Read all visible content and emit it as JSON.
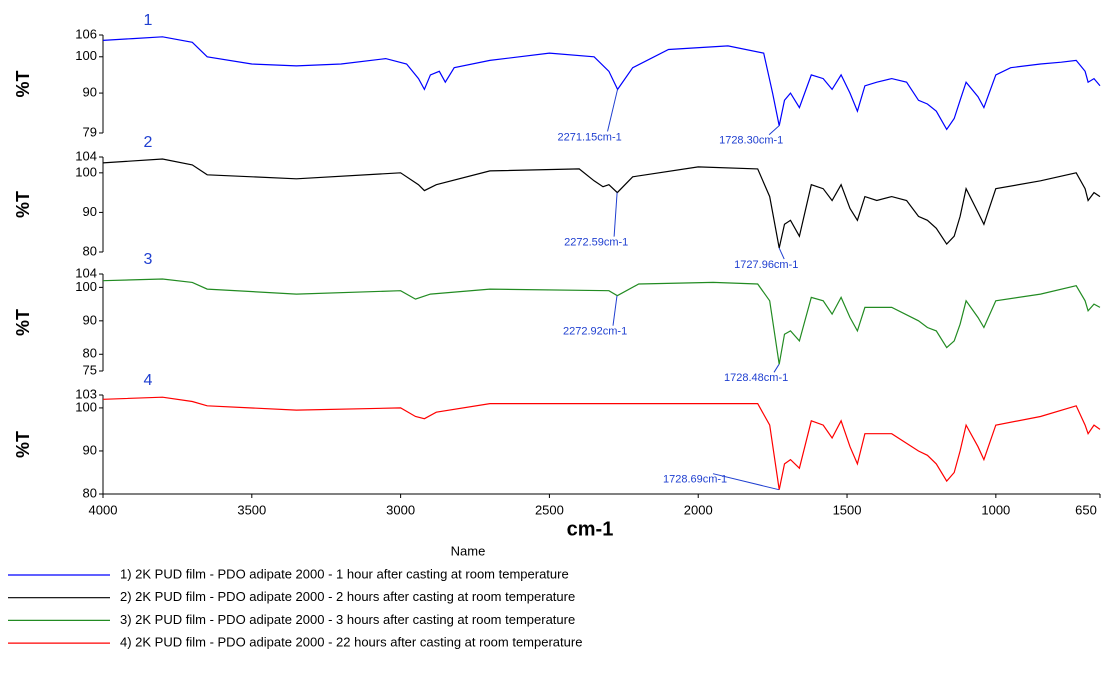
{
  "chart_data": [
    {
      "type": "line",
      "title": "1",
      "ylabel": "%T",
      "xlim": [
        4000,
        650
      ],
      "ylim": [
        79,
        106
      ],
      "yticks": [
        79,
        90,
        100,
        106
      ],
      "series": [
        {
          "name": "1) 2K PUD film - PDO adipate 2000 - 1 hour after casting at room temperature",
          "color": "#0000ff",
          "x": [
            4000,
            3900,
            3800,
            3700,
            3650,
            3500,
            3350,
            3200,
            3050,
            2980,
            2940,
            2920,
            2900,
            2870,
            2850,
            2820,
            2700,
            2500,
            2350,
            2300,
            2271,
            2220,
            2100,
            1900,
            1780,
            1750,
            1728,
            1710,
            1690,
            1660,
            1620,
            1580,
            1550,
            1520,
            1490,
            1465,
            1440,
            1400,
            1350,
            1300,
            1260,
            1230,
            1200,
            1165,
            1140,
            1120,
            1100,
            1060,
            1040,
            1000,
            950,
            850,
            780,
            730,
            700,
            690,
            670,
            650
          ],
          "values": [
            104.5,
            105,
            105.5,
            104,
            100,
            98,
            97.5,
            98,
            99.5,
            98,
            94,
            91,
            95,
            96,
            93,
            97,
            99,
            101,
            100,
            96,
            91,
            97,
            102,
            103,
            101,
            90,
            81,
            88,
            90,
            86,
            95,
            94,
            91,
            95,
            90,
            85,
            92,
            93,
            94,
            93,
            88,
            87,
            85,
            80,
            83,
            88,
            93,
            89,
            86,
            95,
            97,
            98,
            98.5,
            99,
            96,
            93,
            94,
            92
          ]
        }
      ],
      "annotations": [
        {
          "text": "2271.15cm-1",
          "x": 2271.15,
          "y": 91
        },
        {
          "text": "1728.30cm-1",
          "x": 1728.3,
          "y": 81
        }
      ]
    },
    {
      "type": "line",
      "title": "2",
      "ylabel": "%T",
      "xlim": [
        4000,
        650
      ],
      "ylim": [
        80,
        104
      ],
      "yticks": [
        80,
        90,
        100,
        104
      ],
      "series": [
        {
          "name": "2) 2K PUD film - PDO adipate 2000 - 2 hours  after casting at room temperature",
          "color": "#000000",
          "x": [
            4000,
            3800,
            3700,
            3650,
            3350,
            3000,
            2940,
            2920,
            2880,
            2700,
            2400,
            2350,
            2320,
            2300,
            2272,
            2220,
            2000,
            1800,
            1760,
            1728,
            1710,
            1690,
            1660,
            1620,
            1580,
            1550,
            1520,
            1490,
            1465,
            1440,
            1400,
            1350,
            1300,
            1260,
            1230,
            1200,
            1165,
            1140,
            1120,
            1100,
            1060,
            1040,
            1000,
            850,
            730,
            700,
            690,
            670,
            650
          ],
          "values": [
            102.5,
            103.5,
            102,
            99.5,
            98.5,
            100,
            97,
            95.5,
            97,
            100.5,
            101,
            98,
            96.5,
            97,
            95,
            99,
            101.5,
            101,
            94,
            81,
            87,
            88,
            84,
            97,
            96,
            93,
            97,
            91,
            88,
            94,
            93,
            94,
            93,
            89,
            88,
            86,
            82,
            84,
            89,
            96,
            90,
            87,
            96,
            98,
            100,
            96,
            93,
            95,
            94
          ]
        }
      ],
      "annotations": [
        {
          "text": "2272.59cm-1",
          "x": 2272.59,
          "y": 95
        },
        {
          "text": "1727.96cm-1",
          "x": 1727.96,
          "y": 81
        }
      ]
    },
    {
      "type": "line",
      "title": "3",
      "ylabel": "%T",
      "xlim": [
        4000,
        650
      ],
      "ylim": [
        75,
        104
      ],
      "yticks": [
        75,
        80,
        90,
        100,
        104
      ],
      "series": [
        {
          "name": "3) 2K PUD film - PDO adipate 2000 - 3 hours  after casting at room temperature",
          "color": "#228b22",
          "x": [
            4000,
            3800,
            3700,
            3650,
            3350,
            3000,
            2950,
            2900,
            2700,
            2300,
            2272,
            2200,
            1950,
            1800,
            1760,
            1728,
            1710,
            1690,
            1660,
            1620,
            1580,
            1550,
            1520,
            1490,
            1465,
            1440,
            1350,
            1260,
            1230,
            1200,
            1165,
            1140,
            1120,
            1100,
            1060,
            1040,
            1000,
            850,
            730,
            700,
            690,
            670,
            650
          ],
          "values": [
            102,
            102.5,
            101.5,
            99.5,
            98,
            99,
            96.5,
            98,
            99.5,
            99,
            97.5,
            101,
            101.5,
            101,
            96,
            77,
            86,
            87,
            84,
            97,
            96,
            92,
            97,
            91,
            87,
            94,
            94,
            90,
            88,
            87,
            82,
            84,
            89,
            96,
            91,
            88,
            96,
            98,
            100.5,
            96,
            93,
            95,
            94
          ]
        }
      ],
      "annotations": [
        {
          "text": "2272.92cm-1",
          "x": 2272.92,
          "y": 97.5
        },
        {
          "text": "1728.48cm-1",
          "x": 1728.48,
          "y": 77
        }
      ]
    },
    {
      "type": "line",
      "title": "4",
      "ylabel": "%T",
      "xlabel": "cm-1",
      "legend_title": "Name",
      "xlim": [
        4000,
        650
      ],
      "ylim": [
        80,
        103
      ],
      "yticks": [
        80,
        90,
        100,
        103
      ],
      "xticks": [
        4000,
        3500,
        3000,
        2500,
        2000,
        1500,
        1000,
        650
      ],
      "series": [
        {
          "name": "4) 2K PUD film - PDO adipate 2000 - 22 hours  after casting at room temperature",
          "color": "#ff0000",
          "x": [
            4000,
            3800,
            3700,
            3650,
            3350,
            3000,
            2950,
            2920,
            2880,
            2700,
            2000,
            1800,
            1760,
            1728,
            1710,
            1690,
            1660,
            1620,
            1580,
            1550,
            1520,
            1490,
            1465,
            1440,
            1350,
            1260,
            1230,
            1200,
            1165,
            1140,
            1120,
            1100,
            1060,
            1040,
            1000,
            850,
            730,
            700,
            690,
            670,
            650
          ],
          "values": [
            102,
            102.5,
            101.5,
            100.5,
            99.5,
            100,
            98,
            97.5,
            99,
            101,
            101,
            101,
            96,
            81,
            87,
            88,
            86,
            97,
            96,
            93,
            97,
            91,
            87,
            94,
            94,
            90,
            89,
            87,
            83,
            85,
            90,
            96,
            91,
            88,
            96,
            98,
            100.5,
            96,
            94,
            96,
            95
          ]
        }
      ],
      "annotations": [
        {
          "text": "1728.69cm-1",
          "x": 1728.69,
          "y": 81
        }
      ]
    }
  ]
}
